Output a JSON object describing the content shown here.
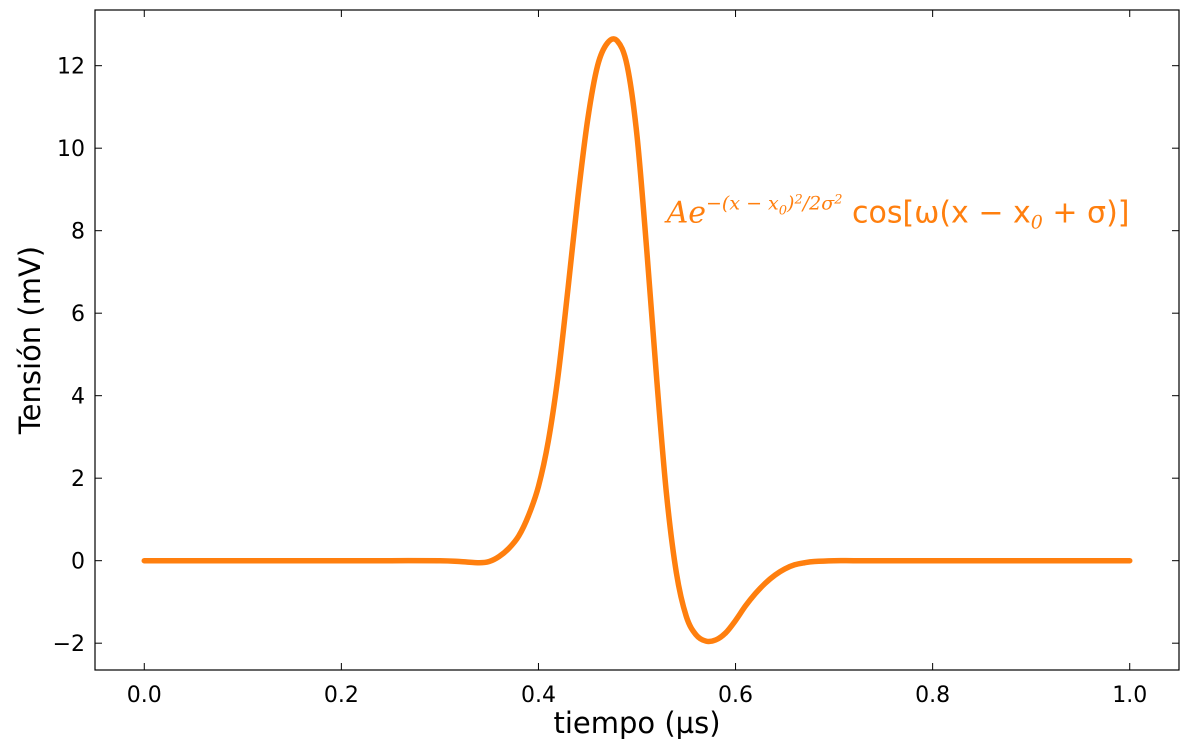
{
  "chart_data": {
    "type": "line",
    "xlabel": "tiempo (µs)",
    "ylabel": "Tensión (mV)",
    "xlim": [
      -0.05,
      1.05
    ],
    "ylim": [
      -2.65,
      13.35
    ],
    "xticks": [
      0.0,
      0.2,
      0.4,
      0.6,
      0.8,
      1.0
    ],
    "xtick_labels": [
      "0.0",
      "0.2",
      "0.4",
      "0.6",
      "0.8",
      "1.0"
    ],
    "yticks": [
      -2,
      0,
      2,
      4,
      6,
      8,
      10,
      12
    ],
    "ytick_labels": [
      "−2",
      "0",
      "2",
      "4",
      "6",
      "8",
      "10",
      "12"
    ],
    "grid": false,
    "ticks_direction": "in",
    "series": [
      {
        "color": "#ff7f0e",
        "x": [
          0.0,
          0.05,
          0.1,
          0.15,
          0.2,
          0.25,
          0.3,
          0.32,
          0.34,
          0.35,
          0.36,
          0.37,
          0.38,
          0.39,
          0.4,
          0.41,
          0.42,
          0.43,
          0.44,
          0.45,
          0.46,
          0.47,
          0.48,
          0.49,
          0.5,
          0.51,
          0.52,
          0.53,
          0.54,
          0.55,
          0.56,
          0.57,
          0.58,
          0.59,
          0.6,
          0.61,
          0.62,
          0.63,
          0.64,
          0.65,
          0.66,
          0.67,
          0.68,
          0.7,
          0.72,
          0.75,
          0.8,
          0.85,
          0.9,
          0.95,
          1.0
        ],
        "y": [
          0.0,
          0.0,
          0.0,
          0.0,
          0.0,
          0.0,
          0.0,
          -0.02,
          -0.05,
          -0.02,
          0.1,
          0.3,
          0.6,
          1.1,
          1.8,
          2.9,
          4.5,
          6.6,
          8.8,
          10.7,
          12.0,
          12.55,
          12.6,
          12.0,
          10.3,
          7.5,
          4.4,
          1.6,
          -0.3,
          -1.35,
          -1.8,
          -1.95,
          -1.92,
          -1.75,
          -1.45,
          -1.1,
          -0.8,
          -0.55,
          -0.35,
          -0.2,
          -0.1,
          -0.05,
          -0.02,
          0.0,
          0.0,
          0.0,
          0.0,
          0.0,
          0.0,
          0.0,
          0.0
        ]
      }
    ],
    "annotations": [
      {
        "text": "Ae^{-(x-x_0)^2/2σ^2} cos[ω(x-x_0+σ)]",
        "x": 0.53,
        "y": 8.2,
        "color": "#ff7f0e"
      }
    ]
  }
}
